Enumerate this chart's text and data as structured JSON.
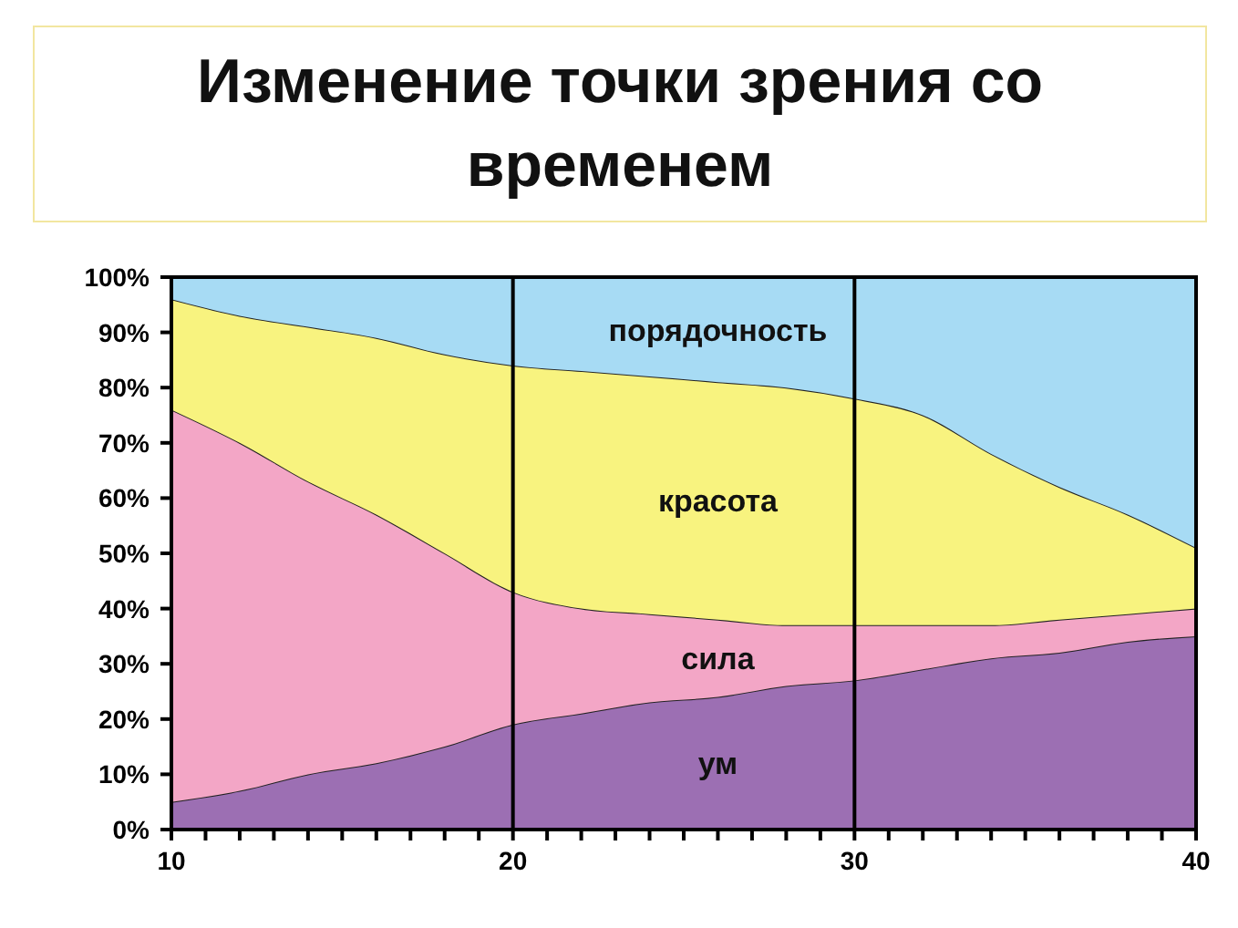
{
  "chart_data": {
    "type": "area",
    "title": "Изменение  точки зрения со временем",
    "stacked": true,
    "x": [
      10,
      12,
      14,
      16,
      18,
      20,
      22,
      24,
      26,
      28,
      30,
      32,
      34,
      36,
      38,
      40
    ],
    "series": [
      {
        "name": "ум",
        "color": "#9c6fb3",
        "values": [
          5,
          7,
          10,
          12,
          15,
          19,
          21,
          23,
          24,
          26,
          27,
          29,
          31,
          32,
          34,
          35
        ]
      },
      {
        "name": "сила",
        "color": "#f3a6c6",
        "values": [
          71,
          63,
          53,
          45,
          35,
          24,
          19,
          16,
          14,
          11,
          10,
          8,
          6,
          6,
          5,
          5
        ]
      },
      {
        "name": "красота",
        "color": "#f8f37f",
        "values": [
          20,
          23,
          28,
          32,
          36,
          41,
          43,
          43,
          43,
          43,
          41,
          38,
          31,
          24,
          18,
          11
        ]
      },
      {
        "name": "порядочность",
        "color": "#a7dbf4",
        "values": [
          4,
          7,
          9,
          11,
          14,
          16,
          17,
          18,
          19,
          20,
          22,
          25,
          32,
          38,
          43,
          49
        ]
      }
    ],
    "xlim": [
      10,
      40
    ],
    "xticks": [
      10,
      {
        "value": 11,
        "label": null
      },
      {
        "value": 12,
        "label": null
      },
      {
        "value": 13,
        "label": null
      },
      {
        "value": 14,
        "label": null
      },
      {
        "value": 15,
        "label": null
      },
      {
        "value": 16,
        "label": null
      },
      {
        "value": 17,
        "label": null
      },
      {
        "value": 18,
        "label": null
      },
      {
        "value": 19,
        "label": null
      },
      20,
      {
        "value": 21,
        "label": null
      },
      {
        "value": 22,
        "label": null
      },
      {
        "value": 23,
        "label": null
      },
      {
        "value": 24,
        "label": null
      },
      {
        "value": 25,
        "label": null
      },
      {
        "value": 26,
        "label": null
      },
      {
        "value": 27,
        "label": null
      },
      {
        "value": 28,
        "label": null
      },
      {
        "value": 29,
        "label": null
      },
      30,
      {
        "value": 31,
        "label": null
      },
      {
        "value": 32,
        "label": null
      },
      {
        "value": 33,
        "label": null
      },
      {
        "value": 34,
        "label": null
      },
      {
        "value": 35,
        "label": null
      },
      {
        "value": 36,
        "label": null
      },
      {
        "value": 37,
        "label": null
      },
      {
        "value": 38,
        "label": null
      },
      {
        "value": 39,
        "label": null
      },
      40
    ],
    "ylim": [
      0,
      100
    ],
    "yticks": [
      {
        "value": 0,
        "label": "0%"
      },
      {
        "value": 10,
        "label": "10%"
      },
      {
        "value": 20,
        "label": "20%"
      },
      {
        "value": 30,
        "label": "30%"
      },
      {
        "value": 40,
        "label": "40%"
      },
      {
        "value": 50,
        "label": "50%"
      },
      {
        "value": 60,
        "label": "60%"
      },
      {
        "value": 70,
        "label": "70%"
      },
      {
        "value": 80,
        "label": "80%"
      },
      {
        "value": 90,
        "label": "90%"
      },
      {
        "value": 100,
        "label": "100%"
      }
    ],
    "ref_lines": [
      {
        "axis": "x",
        "value": 20,
        "color": "#000000"
      },
      {
        "axis": "x",
        "value": 30,
        "color": "#000000"
      }
    ]
  }
}
